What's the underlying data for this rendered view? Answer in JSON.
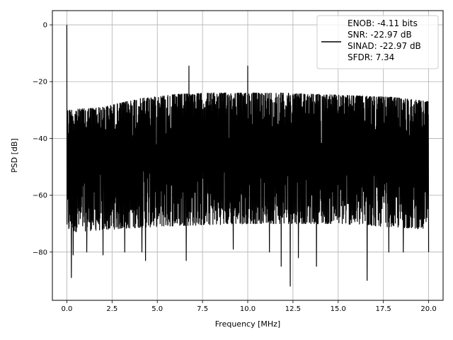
{
  "chart_data": {
    "type": "line",
    "title": "",
    "xlabel": "Frequency [MHz]",
    "ylabel": "PSD [dB]",
    "xlim": [
      -0.8,
      20.8
    ],
    "ylim": [
      -97,
      5
    ],
    "x_ticks": [
      0.0,
      2.5,
      5.0,
      7.5,
      10.0,
      12.5,
      15.0,
      17.5,
      20.0
    ],
    "x_tick_labels": [
      "0.0",
      "2.5",
      "5.0",
      "7.5",
      "10.0",
      "12.5",
      "15.0",
      "17.5",
      "20.0"
    ],
    "y_ticks": [
      0,
      -20,
      -40,
      -60,
      -80
    ],
    "y_tick_labels": [
      "0",
      "−20",
      "−40",
      "−60",
      "−80"
    ],
    "grid": true,
    "legend_position": "top-right",
    "line_color": "#000000",
    "legend": {
      "lines": [
        "ENOB: -4.11 bits",
        "SNR: -22.97 dB",
        "SINAD: -22.97 dB",
        "SFDR: 7.34"
      ]
    },
    "series": [
      {
        "x_range": [
          0.0,
          20.0
        ],
        "noise_floor_upper_db": [
          [
            0.0,
            -30
          ],
          [
            2.0,
            -29
          ],
          [
            4.0,
            -26
          ],
          [
            6.0,
            -24.5
          ],
          [
            8.0,
            -24
          ],
          [
            10.0,
            -24
          ],
          [
            12.0,
            -24
          ],
          [
            14.0,
            -24.5
          ],
          [
            16.0,
            -25
          ],
          [
            18.0,
            -25.5
          ],
          [
            20.0,
            -27
          ]
        ],
        "noise_floor_lower_db": [
          [
            0.0,
            -73
          ],
          [
            5.0,
            -71
          ],
          [
            10.0,
            -70
          ],
          [
            15.0,
            -70
          ],
          [
            20.0,
            -72
          ]
        ],
        "peaks": [
          {
            "x": 0.0,
            "y": 0
          },
          {
            "x": 6.75,
            "y": -14.5
          },
          {
            "x": 10.0,
            "y": -14.5
          }
        ],
        "dips": [
          {
            "x": 0.25,
            "y": -89
          },
          {
            "x": 0.35,
            "y": -81
          },
          {
            "x": 1.1,
            "y": -80
          },
          {
            "x": 2.0,
            "y": -81
          },
          {
            "x": 3.2,
            "y": -80
          },
          {
            "x": 4.15,
            "y": -80
          },
          {
            "x": 4.35,
            "y": -83
          },
          {
            "x": 6.6,
            "y": -83
          },
          {
            "x": 9.2,
            "y": -79
          },
          {
            "x": 11.2,
            "y": -80
          },
          {
            "x": 11.85,
            "y": -85
          },
          {
            "x": 12.35,
            "y": -92
          },
          {
            "x": 12.8,
            "y": -82
          },
          {
            "x": 13.8,
            "y": -85
          },
          {
            "x": 16.6,
            "y": -90
          },
          {
            "x": 17.8,
            "y": -80
          },
          {
            "x": 18.6,
            "y": -80
          },
          {
            "x": 20.0,
            "y": -80
          }
        ]
      }
    ]
  }
}
